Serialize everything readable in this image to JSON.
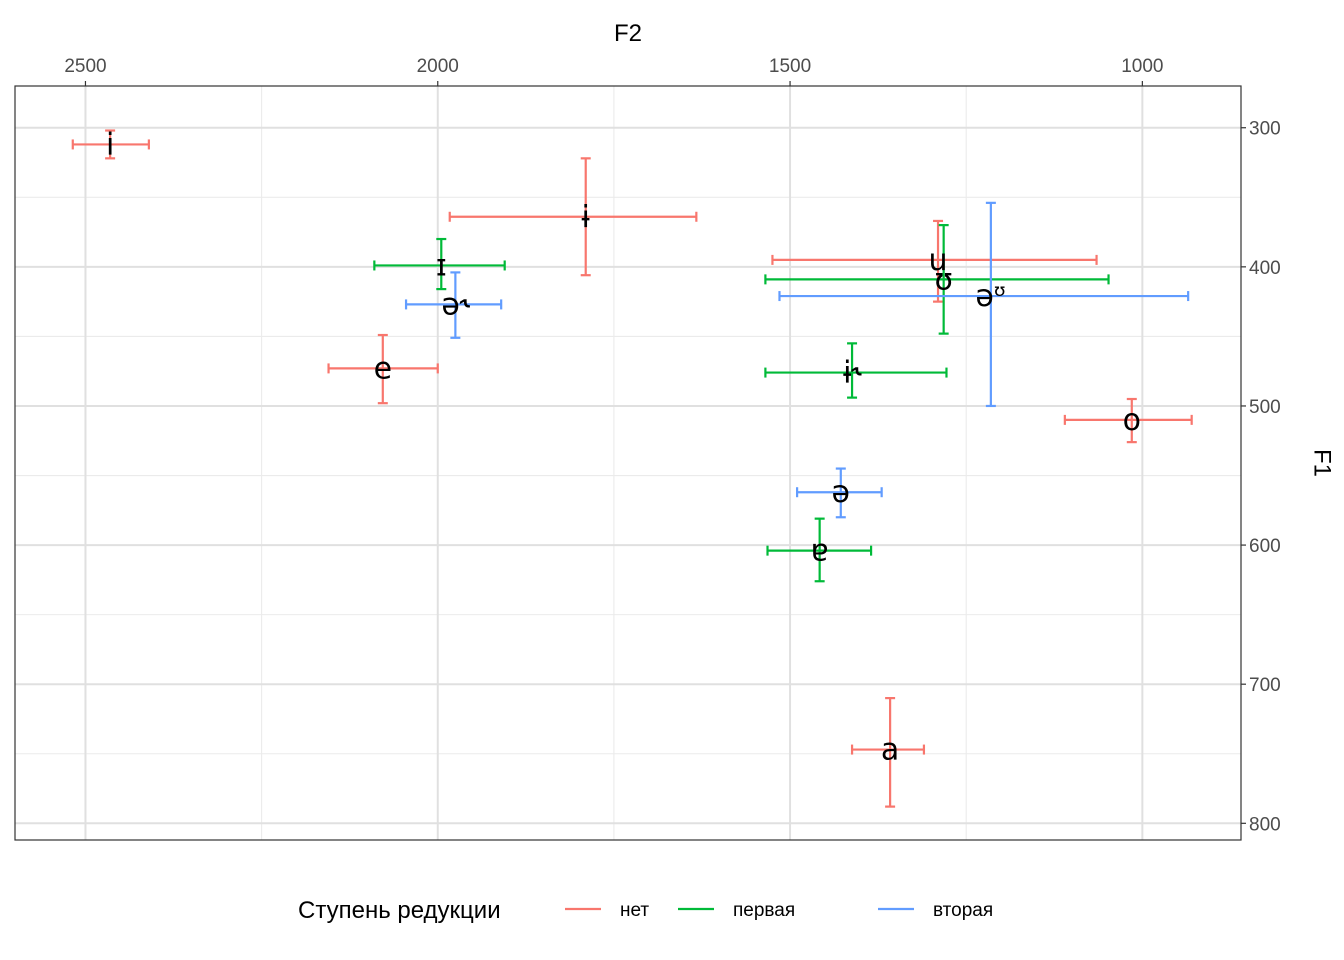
{
  "chart_data": {
    "type": "scatter",
    "xlabel": "F2",
    "ylabel": "F1",
    "x_axis_position": "top",
    "y_axis_position": "right",
    "x_reversed": true,
    "y_reversed": true,
    "xlim": [
      2600,
      860
    ],
    "ylim": [
      270,
      812
    ],
    "x_ticks": [
      2500,
      2000,
      1500,
      1000
    ],
    "y_ticks": [
      300,
      400,
      500,
      600,
      700,
      800
    ],
    "grid": true,
    "legend": {
      "title": "Ступень редукции",
      "position": "bottom",
      "items": [
        {
          "name": "нет",
          "color": "#F8766D"
        },
        {
          "name": "первая",
          "color": "#00BA38"
        },
        {
          "name": "вторая",
          "color": "#619CFF"
        }
      ]
    },
    "series": [
      {
        "name": "нет",
        "color": "#F8766D",
        "points": [
          {
            "label": "i",
            "x": 2465,
            "y": 312,
            "xmin": 2410,
            "xmax": 2518,
            "ymin": 302,
            "ymax": 322
          },
          {
            "label": "ɨ",
            "x": 1790,
            "y": 364,
            "xmin": 1633,
            "xmax": 1983,
            "ymin": 322,
            "ymax": 406
          },
          {
            "label": "e",
            "x": 2078,
            "y": 473,
            "xmin": 2000,
            "xmax": 2155,
            "ymin": 449,
            "ymax": 498
          },
          {
            "label": "u",
            "x": 1290,
            "y": 395,
            "xmin": 1065,
            "xmax": 1525,
            "ymin": 367,
            "ymax": 425
          },
          {
            "label": "o",
            "x": 1015,
            "y": 510,
            "xmin": 930,
            "xmax": 1110,
            "ymin": 495,
            "ymax": 526
          },
          {
            "label": "a",
            "x": 1358,
            "y": 747,
            "xmin": 1310,
            "xmax": 1412,
            "ymin": 710,
            "ymax": 788
          }
        ]
      },
      {
        "name": "первая",
        "color": "#00BA38",
        "points": [
          {
            "label": "ɪ",
            "x": 1995,
            "y": 399,
            "xmin": 1905,
            "xmax": 2090,
            "ymin": 380,
            "ymax": 416
          },
          {
            "label": "ʊ",
            "x": 1282,
            "y": 409,
            "xmin": 1048,
            "xmax": 1535,
            "ymin": 370,
            "ymax": 448
          },
          {
            "label": "ɨ˞",
            "x": 1412,
            "y": 476,
            "xmin": 1278,
            "xmax": 1535,
            "ymin": 455,
            "ymax": 494
          },
          {
            "label": "ɐ",
            "x": 1458,
            "y": 604,
            "xmin": 1385,
            "xmax": 1532,
            "ymin": 581,
            "ymax": 626
          }
        ]
      },
      {
        "name": "вторая",
        "color": "#619CFF",
        "points": [
          {
            "label": "ə˞",
            "x": 1975,
            "y": 427,
            "xmin": 1910,
            "xmax": 2045,
            "ymin": 404,
            "ymax": 451
          },
          {
            "label": "əᶷ",
            "x": 1215,
            "y": 421,
            "xmin": 935,
            "xmax": 1515,
            "ymin": 354,
            "ymax": 500
          },
          {
            "label": "ə",
            "x": 1428,
            "y": 562,
            "xmin": 1370,
            "xmax": 1490,
            "ymin": 545,
            "ymax": 580
          }
        ]
      }
    ]
  }
}
